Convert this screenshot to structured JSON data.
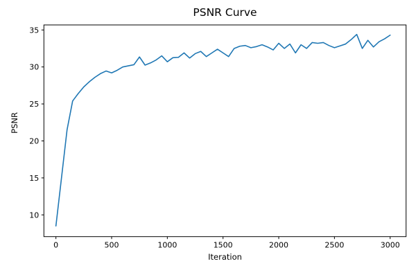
{
  "chart_data": {
    "type": "line",
    "title": "PSNR Curve",
    "xlabel": "Iteration",
    "ylabel": "PSNR",
    "grid": false,
    "legend_position": "none",
    "line_color": "#1f77b4",
    "axis_color": "#000000",
    "xlim": [
      -108,
      3143
    ],
    "ylim": [
      7.06,
      35.68
    ],
    "xticks": [
      0,
      500,
      1000,
      1500,
      2000,
      2500,
      3000
    ],
    "yticks": [
      10,
      15,
      20,
      25,
      30,
      35
    ],
    "x": [
      0,
      50,
      100,
      150,
      200,
      250,
      300,
      350,
      400,
      450,
      500,
      550,
      600,
      650,
      700,
      750,
      800,
      850,
      900,
      950,
      1000,
      1050,
      1100,
      1150,
      1200,
      1250,
      1300,
      1350,
      1400,
      1450,
      1500,
      1550,
      1600,
      1650,
      1700,
      1750,
      1800,
      1850,
      1900,
      1950,
      2000,
      2050,
      2100,
      2150,
      2200,
      2250,
      2300,
      2350,
      2400,
      2450,
      2500,
      2550,
      2600,
      2650,
      2700,
      2750,
      2800,
      2850,
      2900,
      2950,
      3000
    ],
    "series": [
      {
        "name": "PSNR",
        "values": [
          8.5,
          15.0,
          21.5,
          25.4,
          26.4,
          27.3,
          28.0,
          28.6,
          29.1,
          29.45,
          29.2,
          29.55,
          30.0,
          30.15,
          30.3,
          31.35,
          30.25,
          30.55,
          30.95,
          31.5,
          30.7,
          31.25,
          31.3,
          31.9,
          31.2,
          31.8,
          32.1,
          31.4,
          31.9,
          32.4,
          31.9,
          31.4,
          32.5,
          32.8,
          32.9,
          32.6,
          32.75,
          33.0,
          32.7,
          32.3,
          33.2,
          32.5,
          33.1,
          31.9,
          33.0,
          32.5,
          33.3,
          33.2,
          33.3,
          32.9,
          32.6,
          32.85,
          33.1,
          33.7,
          34.4,
          32.5,
          33.6,
          32.7,
          33.4,
          33.8,
          34.3
        ]
      }
    ]
  }
}
